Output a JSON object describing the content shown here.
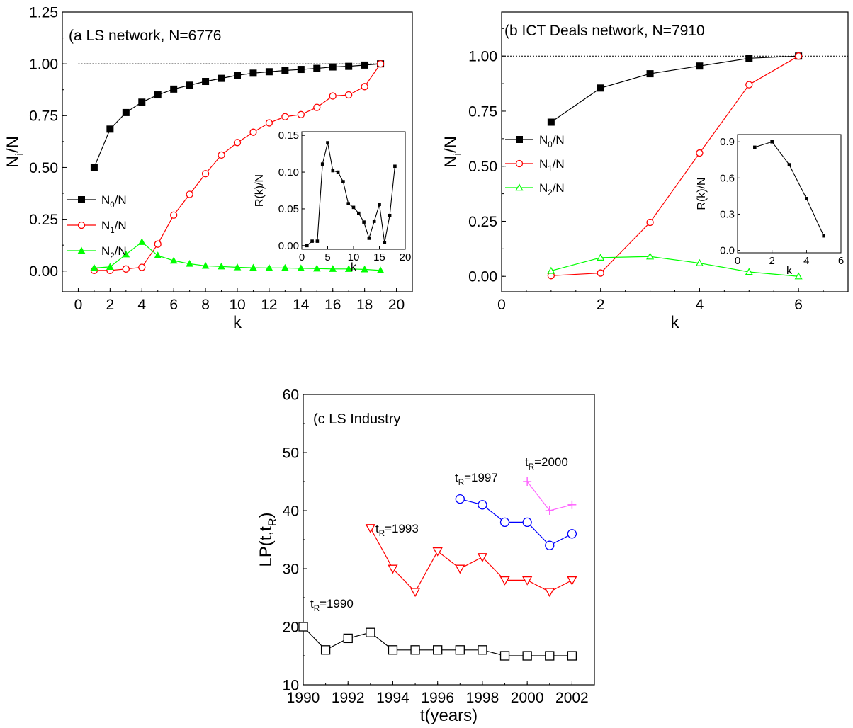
{
  "chart_data": [
    {
      "id": "a",
      "type": "line",
      "title": "(a LS network, N=6776",
      "xlabel": "k",
      "ylabel": "N",
      "ylabel_sub": "i",
      "ylabel_tail": "/N",
      "xlim": [
        -1,
        21
      ],
      "ylim": [
        -0.1,
        1.25
      ],
      "xticks": [
        "0",
        "2",
        "4",
        "6",
        "8",
        "10",
        "12",
        "14",
        "16",
        "18",
        "20"
      ],
      "yticks": [
        "0.00",
        "0.25",
        "0.50",
        "0.75",
        "1.00",
        "1.25"
      ],
      "reference_line_y": 1.0,
      "series": [
        {
          "name": "N",
          "sub": "0",
          "tail": "/N",
          "color": "#000000",
          "marker": "square-filled",
          "x": [
            1,
            2,
            3,
            4,
            5,
            6,
            7,
            8,
            9,
            10,
            11,
            12,
            13,
            14,
            15,
            16,
            17,
            18,
            19
          ],
          "y": [
            0.5,
            0.685,
            0.765,
            0.815,
            0.85,
            0.878,
            0.897,
            0.915,
            0.93,
            0.945,
            0.955,
            0.962,
            0.968,
            0.973,
            0.978,
            0.985,
            0.988,
            0.994,
            1.0
          ]
        },
        {
          "name": "N",
          "sub": "1",
          "tail": "/N",
          "color": "#ff0000",
          "marker": "circle-open",
          "x": [
            1,
            2,
            3,
            4,
            5,
            6,
            7,
            8,
            9,
            10,
            11,
            12,
            13,
            14,
            15,
            16,
            17,
            18,
            19
          ],
          "y": [
            0.003,
            0.003,
            0.01,
            0.018,
            0.13,
            0.27,
            0.37,
            0.47,
            0.56,
            0.62,
            0.67,
            0.715,
            0.745,
            0.755,
            0.79,
            0.845,
            0.85,
            0.89,
            1.0
          ]
        },
        {
          "name": "N",
          "sub": "2",
          "tail": "/N",
          "color": "#00ff00",
          "marker": "triangle-filled",
          "x": [
            1,
            2,
            3,
            4,
            5,
            6,
            7,
            8,
            9,
            10,
            11,
            12,
            13,
            14,
            15,
            16,
            17,
            18,
            19
          ],
          "y": [
            0.015,
            0.02,
            0.08,
            0.14,
            0.075,
            0.05,
            0.035,
            0.025,
            0.022,
            0.018,
            0.016,
            0.015,
            0.015,
            0.013,
            0.012,
            0.01,
            0.01,
            0.008,
            0.003
          ]
        }
      ],
      "inset": {
        "xlabel": "k",
        "ylabel": "R(k)/N",
        "xlim": [
          0,
          20
        ],
        "ylim": [
          -0.005,
          0.155
        ],
        "xticks": [
          "0",
          "5",
          "10",
          "15",
          "20"
        ],
        "yticks": [
          "0.00",
          "0.05",
          "0.10",
          "0.15"
        ],
        "series": [
          {
            "color": "#000000",
            "marker": "square-filled",
            "x": [
              1,
              2,
              3,
              4,
              5,
              6,
              7,
              8,
              9,
              10,
              11,
              12,
              13,
              14,
              15,
              16,
              17,
              18
            ],
            "y": [
              0.0,
              0.006,
              0.006,
              0.111,
              0.14,
              0.102,
              0.1,
              0.087,
              0.057,
              0.052,
              0.044,
              0.032,
              0.01,
              0.033,
              0.056,
              0.004,
              0.041,
              0.108
            ]
          }
        ]
      }
    },
    {
      "id": "b",
      "type": "line",
      "title": "(b ICT Deals network, N=7910",
      "xlabel": "k",
      "ylabel": "N",
      "ylabel_sub": "i",
      "ylabel_tail": "/N",
      "xlim": [
        0,
        7
      ],
      "ylim": [
        -0.07,
        1.2
      ],
      "xticks": [
        "0",
        "2",
        "4",
        "6"
      ],
      "yticks": [
        "0.00",
        "0.25",
        "0.50",
        "0.75",
        "1.00"
      ],
      "reference_line_y": 1.0,
      "series": [
        {
          "name": "N",
          "sub": "0",
          "tail": "/N",
          "color": "#000000",
          "marker": "square-filled",
          "x": [
            1,
            2,
            3,
            4,
            5,
            6
          ],
          "y": [
            0.7,
            0.855,
            0.92,
            0.955,
            0.99,
            1.0
          ]
        },
        {
          "name": "N",
          "sub": "1",
          "tail": "/N",
          "color": "#ff0000",
          "marker": "circle-open",
          "x": [
            1,
            2,
            3,
            4,
            5,
            6
          ],
          "y": [
            0.003,
            0.015,
            0.245,
            0.56,
            0.87,
            1.0
          ]
        },
        {
          "name": "N",
          "sub": "2",
          "tail": "/N",
          "color": "#00ff00",
          "marker": "triangle-open",
          "x": [
            1,
            2,
            3,
            4,
            5,
            6
          ],
          "y": [
            0.025,
            0.085,
            0.09,
            0.06,
            0.02,
            0.0
          ]
        }
      ],
      "inset": {
        "xlabel": "k",
        "ylabel": "R(k)/N",
        "xlim": [
          0,
          6
        ],
        "ylim": [
          -0.02,
          0.96
        ],
        "xticks": [
          "0",
          "2",
          "4",
          "6"
        ],
        "yticks": [
          "0.0",
          "0.3",
          "0.6",
          "0.9"
        ],
        "series": [
          {
            "color": "#000000",
            "marker": "square-filled",
            "x": [
              1,
              2,
              3,
              4,
              5
            ],
            "y": [
              0.855,
              0.9,
              0.71,
              0.43,
              0.12
            ]
          }
        ]
      }
    },
    {
      "id": "c",
      "type": "line",
      "title": "(c LS Industry",
      "xlabel": "t(years)",
      "ylabel": "LP(t,t",
      "ylabel_sub": "R",
      "ylabel_tail": ")",
      "xlim": [
        1990,
        2003
      ],
      "ylim": [
        10,
        60
      ],
      "xticks": [
        "1990",
        "1992",
        "1994",
        "1996",
        "1998",
        "2000",
        "2002"
      ],
      "yticks": [
        "10",
        "20",
        "30",
        "40",
        "50",
        "60"
      ],
      "series": [
        {
          "name": "t",
          "sub": "R",
          "tail": "=1990",
          "color": "#000000",
          "marker": "square-open",
          "x": [
            1990,
            1991,
            1992,
            1993,
            1994,
            1995,
            1996,
            1997,
            1998,
            1999,
            2000,
            2001,
            2002
          ],
          "y": [
            20,
            16,
            18,
            19,
            16,
            16,
            16,
            16,
            16,
            15,
            15,
            15,
            15
          ]
        },
        {
          "name": "t",
          "sub": "R",
          "tail": "=1993",
          "color": "#ff0000",
          "marker": "triangle-down-open",
          "x": [
            1993,
            1994,
            1995,
            1996,
            1997,
            1998,
            1999,
            2000,
            2001,
            2002
          ],
          "y": [
            37,
            30,
            26,
            33,
            30,
            32,
            28,
            28,
            26,
            28
          ]
        },
        {
          "name": "t",
          "sub": "R",
          "tail": "=1997",
          "color": "#0000ff",
          "marker": "circle-open",
          "x": [
            1997,
            1998,
            1999,
            2000,
            2001,
            2002
          ],
          "y": [
            42,
            41,
            38,
            38,
            34,
            36
          ]
        },
        {
          "name": "t",
          "sub": "R",
          "tail": "=2000",
          "color": "#ff66ff",
          "marker": "plus",
          "x": [
            2000,
            2001,
            2002
          ],
          "y": [
            45,
            40,
            41
          ]
        }
      ]
    }
  ]
}
